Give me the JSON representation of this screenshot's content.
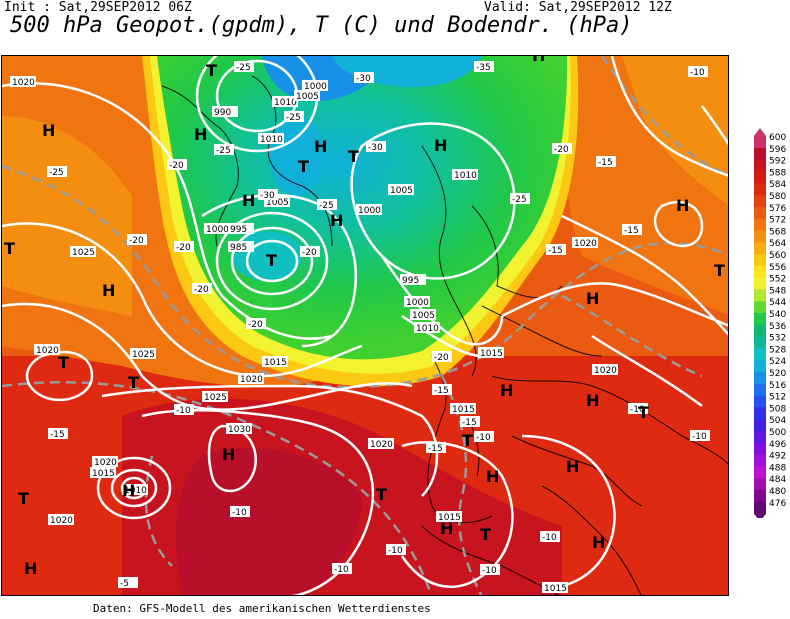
{
  "header": {
    "init": "Init : Sat,29SEP2012 06Z",
    "valid": "Valid: Sat,29SEP2012 12Z",
    "title": "500 hPa Geopot.(gpdm), T (C) und Bodendr. (hPa)"
  },
  "credit": "Daten: GFS-Modell des amerikanischen Wetterdienstes",
  "legend": {
    "values": [
      "600",
      "596",
      "592",
      "588",
      "584",
      "580",
      "576",
      "572",
      "568",
      "564",
      "560",
      "556",
      "552",
      "548",
      "544",
      "540",
      "536",
      "532",
      "528",
      "524",
      "520",
      "516",
      "512",
      "508",
      "504",
      "500",
      "496",
      "492",
      "488",
      "484",
      "480",
      "476"
    ],
    "colors": [
      "#cc3366",
      "#b8102a",
      "#c8141e",
      "#d41a14",
      "#dd2a10",
      "#e44010",
      "#ea5a10",
      "#f07410",
      "#f48e10",
      "#f8aa10",
      "#fbc814",
      "#fde21c",
      "#f2f230",
      "#b0e830",
      "#60d830",
      "#20c848",
      "#10b870",
      "#10b898",
      "#10c0c0",
      "#10b0d8",
      "#1890e8",
      "#2070f0",
      "#2850f0",
      "#3030e8",
      "#4020e0",
      "#6018e0",
      "#8010e0",
      "#a010d8",
      "#c010d0",
      "#a010b0",
      "#800890",
      "#600870"
    ]
  },
  "map": {
    "pressure_labels": [
      "1020",
      "1025",
      "1020",
      "1015",
      "1010",
      "1020",
      "1020",
      "1025",
      "1030",
      "1020",
      "1020",
      "1025",
      "1015",
      "1010",
      "1005",
      "1000",
      "995",
      "990",
      "985",
      "1010",
      "1000",
      "1005",
      "1000",
      "1005",
      "995",
      "1000",
      "1005",
      "1010",
      "1015",
      "1020",
      "1015",
      "1010",
      "1015",
      "1020",
      "1015"
    ],
    "temp_labels": [
      "-25",
      "-30",
      "-35",
      "-25",
      "-25",
      "-20",
      "-30",
      "-25",
      "-20",
      "-20",
      "-25",
      "-20",
      "-20",
      "-15",
      "-15",
      "-10",
      "-10",
      "-5",
      "-10",
      "-10",
      "-10",
      "-15",
      "-10",
      "-10",
      "-15",
      "-10",
      "-15",
      "-20",
      "-20",
      "-15",
      "-25",
      "-15",
      "-10",
      "-10",
      "-30",
      "-20"
    ],
    "centers": [
      "H",
      "T",
      "H",
      "T",
      "T",
      "H",
      "H",
      "T",
      "H",
      "T",
      "H",
      "H",
      "T",
      "H",
      "T",
      "H",
      "H",
      "H",
      "H",
      "T",
      "T",
      "H",
      "H",
      "T",
      "H",
      "H",
      "T",
      "T",
      "T",
      "H",
      "H",
      "H"
    ]
  }
}
